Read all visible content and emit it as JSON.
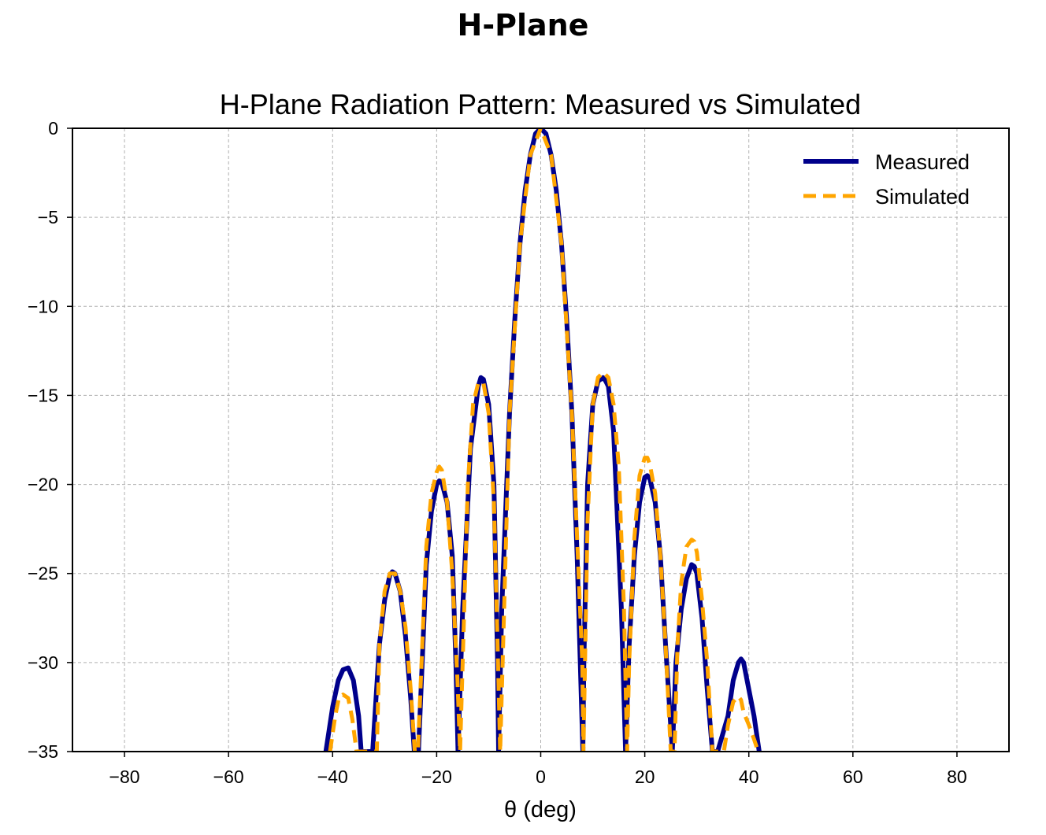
{
  "page": {
    "heading": "H-Plane"
  },
  "chart_data": {
    "type": "line",
    "title": "H-Plane Radiation Pattern: Measured vs Simulated",
    "xlabel": "θ (deg)",
    "ylabel": "",
    "xlim": [
      -90,
      90
    ],
    "ylim": [
      -35,
      0
    ],
    "xticks": [
      -80,
      -60,
      -40,
      -20,
      0,
      20,
      40,
      60,
      80
    ],
    "xtick_labels": [
      "−80",
      "−60",
      "−40",
      "−20",
      "0",
      "20",
      "40",
      "60",
      "80"
    ],
    "yticks": [
      0,
      -5,
      -10,
      -15,
      -20,
      -25,
      -30,
      -35
    ],
    "ytick_labels": [
      "0",
      "−5",
      "−10",
      "−15",
      "−20",
      "−25",
      "−30",
      "−35"
    ],
    "grid": true,
    "legend_position": "top-right",
    "series": [
      {
        "name": "Measured",
        "color": "#00008b",
        "style": "solid",
        "x": [
          -41.3,
          -40,
          -38.9,
          -38,
          -37,
          -36,
          -35,
          -34.5,
          -32.3,
          -31,
          -30,
          -29,
          -28.5,
          -28,
          -27,
          -26,
          -25,
          -24.3,
          -23.5,
          -22,
          -21,
          -20,
          -19.5,
          -19,
          -18,
          -17,
          -16.3,
          -15.9,
          -15,
          -13.5,
          -12,
          -11.5,
          -11,
          -10,
          -9,
          -8.3,
          -8.1,
          -7.5,
          -6,
          -5,
          -4,
          -3,
          -2,
          -1,
          0,
          1,
          2,
          3,
          4,
          5,
          6,
          7,
          8.1,
          8.3,
          9,
          10,
          11,
          12,
          12.5,
          13,
          14,
          15.5,
          16.3,
          17,
          18,
          19,
          20,
          20.5,
          21,
          22,
          23,
          24,
          25.3,
          26,
          27,
          28,
          29,
          29.5,
          30,
          31,
          32,
          33,
          34,
          36,
          37,
          38,
          38.5,
          39,
          40,
          41,
          42
        ],
        "y": [
          -35,
          -32.5,
          -31,
          -30.4,
          -30.3,
          -31,
          -33,
          -35,
          -35,
          -29,
          -26.5,
          -25.1,
          -24.9,
          -25,
          -26,
          -28.5,
          -32,
          -35,
          -35,
          -24.5,
          -21.5,
          -20,
          -19.8,
          -19.9,
          -21,
          -24,
          -30,
          -35,
          -27,
          -18,
          -14.5,
          -14,
          -14.1,
          -15.5,
          -20,
          -30,
          -35,
          -27,
          -16,
          -10.8,
          -6.5,
          -3.5,
          -1.5,
          -0.3,
          0,
          -0.3,
          -1.5,
          -3.5,
          -6.5,
          -10.8,
          -16,
          -24,
          -35,
          -30,
          -20,
          -15.5,
          -14.2,
          -14,
          -14.2,
          -14.5,
          -17,
          -27,
          -35,
          -29,
          -24,
          -21,
          -19.6,
          -19.5,
          -19.7,
          -21,
          -24,
          -29,
          -35,
          -30,
          -27,
          -25.3,
          -24.5,
          -24.6,
          -25,
          -27.5,
          -31.5,
          -35,
          -35,
          -33,
          -31,
          -30,
          -29.8,
          -30,
          -31.5,
          -33,
          -35
        ]
      },
      {
        "name": "Simulated",
        "color": "#ffa500",
        "style": "dashed",
        "x": [
          -40.5,
          -39.5,
          -38.8,
          -38,
          -37,
          -36.2,
          -35.4,
          -31.5,
          -31,
          -30,
          -29,
          -28,
          -27,
          -26,
          -25,
          -24.2,
          -23.6,
          -22,
          -21,
          -20,
          -19.5,
          -19,
          -18,
          -17,
          -16,
          -15.5,
          -14,
          -13,
          -12,
          -11,
          -10,
          -9,
          -8.2,
          -7.8,
          -6,
          -4,
          -2,
          0,
          2,
          4,
          6,
          8,
          8.2,
          9,
          10,
          11,
          12,
          13,
          14,
          15,
          16,
          16.6,
          17,
          18,
          19,
          20,
          20.5,
          21,
          22,
          23,
          24,
          25,
          25.7,
          26.3,
          27,
          28,
          29,
          29.5,
          30,
          31,
          32,
          33,
          33.8,
          35.2,
          36,
          37,
          38,
          38.5,
          39,
          40,
          41,
          41.8
        ],
        "y": [
          -35,
          -33,
          -32,
          -31.8,
          -32,
          -33.2,
          -35,
          -35,
          -29,
          -26,
          -25,
          -25,
          -26,
          -28,
          -31.5,
          -35,
          -35,
          -23.5,
          -20.5,
          -19.3,
          -19,
          -19.2,
          -21,
          -25,
          -31,
          -35,
          -20,
          -15.5,
          -14.3,
          -14.3,
          -16,
          -21,
          -30,
          -35,
          -16,
          -6.5,
          -1.5,
          0,
          -1.5,
          -6.5,
          -16,
          -30,
          -35,
          -22,
          -15.5,
          -14,
          -13.7,
          -14,
          -15.5,
          -19,
          -27,
          -35,
          -30,
          -23,
          -19.5,
          -18.5,
          -18.5,
          -18.9,
          -20.5,
          -24,
          -29,
          -35,
          -35,
          -29,
          -25.5,
          -23.5,
          -23.1,
          -23.2,
          -23.8,
          -26.5,
          -30,
          -35,
          -35,
          -35,
          -33.5,
          -32.2,
          -31.9,
          -32.1,
          -32.8,
          -33.5,
          -34.3,
          -35
        ]
      }
    ]
  }
}
